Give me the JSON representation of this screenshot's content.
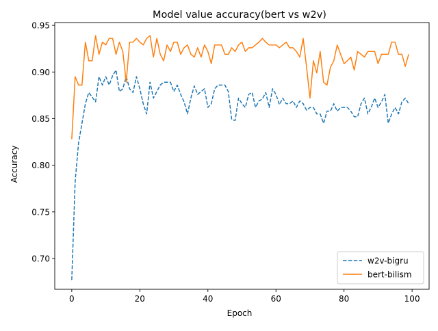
{
  "chart_data": {
    "type": "line",
    "title": "Model value accuracy(bert vs w2v)",
    "xlabel": "Epoch",
    "ylabel": "Accuracy",
    "xlim": [
      -5,
      105
    ],
    "ylim": [
      0.667,
      0.953
    ],
    "xticks": [
      0,
      20,
      40,
      60,
      80,
      100
    ],
    "xtick_labels": [
      "0",
      "20",
      "40",
      "60",
      "80",
      "100"
    ],
    "yticks": [
      0.7,
      0.75,
      0.8,
      0.85,
      0.9,
      0.95
    ],
    "ytick_labels": [
      "0.70",
      "0.75",
      "0.80",
      "0.85",
      "0.90",
      "0.95"
    ],
    "grid": false,
    "legend_position": "lower-right",
    "series": [
      {
        "name": "w2v-bigru",
        "color": "#1f77b4",
        "linestyle": "dashed",
        "x_start": 0,
        "values": [
          0.677,
          0.783,
          0.824,
          0.845,
          0.866,
          0.878,
          0.873,
          0.868,
          0.895,
          0.886,
          0.895,
          0.886,
          0.896,
          0.902,
          0.879,
          0.882,
          0.895,
          0.882,
          0.878,
          0.895,
          0.882,
          0.866,
          0.855,
          0.889,
          0.872,
          0.879,
          0.886,
          0.889,
          0.889,
          0.889,
          0.879,
          0.886,
          0.876,
          0.868,
          0.855,
          0.872,
          0.885,
          0.876,
          0.879,
          0.882,
          0.862,
          0.866,
          0.882,
          0.886,
          0.886,
          0.886,
          0.879,
          0.849,
          0.848,
          0.872,
          0.866,
          0.862,
          0.876,
          0.878,
          0.862,
          0.869,
          0.871,
          0.878,
          0.862,
          0.882,
          0.876,
          0.865,
          0.872,
          0.866,
          0.866,
          0.869,
          0.862,
          0.869,
          0.866,
          0.859,
          0.862,
          0.862,
          0.855,
          0.855,
          0.845,
          0.858,
          0.858,
          0.866,
          0.858,
          0.862,
          0.862,
          0.862,
          0.858,
          0.852,
          0.852,
          0.866,
          0.872,
          0.855,
          0.862,
          0.872,
          0.862,
          0.868,
          0.876,
          0.845,
          0.855,
          0.862,
          0.855,
          0.868,
          0.872,
          0.866
        ]
      },
      {
        "name": "bert-bilism",
        "color": "#ff7f0e",
        "linestyle": "solid",
        "x_start": 0,
        "values": [
          0.828,
          0.895,
          0.886,
          0.886,
          0.932,
          0.912,
          0.912,
          0.939,
          0.919,
          0.932,
          0.929,
          0.936,
          0.936,
          0.919,
          0.932,
          0.922,
          0.889,
          0.932,
          0.932,
          0.936,
          0.932,
          0.929,
          0.936,
          0.939,
          0.916,
          0.936,
          0.919,
          0.912,
          0.929,
          0.922,
          0.932,
          0.932,
          0.919,
          0.926,
          0.929,
          0.919,
          0.916,
          0.926,
          0.916,
          0.929,
          0.922,
          0.909,
          0.929,
          0.929,
          0.929,
          0.919,
          0.919,
          0.926,
          0.922,
          0.929,
          0.932,
          0.922,
          0.926,
          0.926,
          0.929,
          0.932,
          0.936,
          0.932,
          0.929,
          0.929,
          0.929,
          0.926,
          0.929,
          0.932,
          0.926,
          0.926,
          0.922,
          0.916,
          0.936,
          0.905,
          0.872,
          0.912,
          0.899,
          0.922,
          0.889,
          0.886,
          0.905,
          0.912,
          0.929,
          0.919,
          0.909,
          0.912,
          0.916,
          0.902,
          0.922,
          0.919,
          0.916,
          0.922,
          0.922,
          0.922,
          0.909,
          0.919,
          0.919,
          0.919,
          0.932,
          0.932,
          0.919,
          0.919,
          0.906,
          0.919
        ]
      }
    ]
  }
}
